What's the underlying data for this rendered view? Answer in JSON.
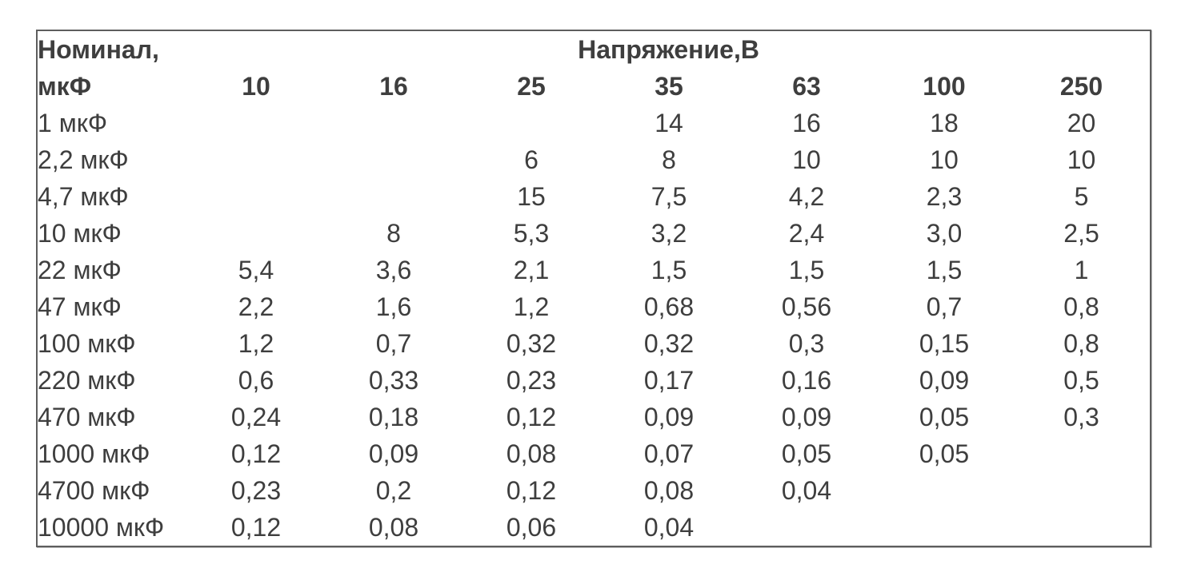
{
  "chart_data": {
    "type": "table",
    "corner_header": {
      "line1": "Номинал,",
      "line2": "мкФ"
    },
    "voltage_header": "Напряжение,В",
    "voltage_columns": [
      "10",
      "16",
      "25",
      "35",
      "63",
      "100",
      "250"
    ],
    "rows": [
      {
        "label": "1 мкФ",
        "values": [
          "",
          "",
          "",
          "14",
          "16",
          "18",
          "20"
        ]
      },
      {
        "label": "2,2 мкФ",
        "values": [
          "",
          "",
          "6",
          "8",
          "10",
          "10",
          "10"
        ]
      },
      {
        "label": "4,7 мкФ",
        "values": [
          "",
          "",
          "15",
          "7,5",
          "4,2",
          "2,3",
          "5"
        ]
      },
      {
        "label": "10 мкФ",
        "values": [
          "",
          "8",
          "5,3",
          "3,2",
          "2,4",
          "3,0",
          "2,5"
        ]
      },
      {
        "label": "22 мкФ",
        "values": [
          "5,4",
          "3,6",
          "2,1",
          "1,5",
          "1,5",
          "1,5",
          "1"
        ]
      },
      {
        "label": "47 мкФ",
        "values": [
          "2,2",
          "1,6",
          "1,2",
          "0,68",
          "0,56",
          "0,7",
          "0,8"
        ]
      },
      {
        "label": "100 мкФ",
        "values": [
          "1,2",
          "0,7",
          "0,32",
          "0,32",
          "0,3",
          "0,15",
          "0,8"
        ]
      },
      {
        "label": "220 мкФ",
        "values": [
          "0,6",
          "0,33",
          "0,23",
          "0,17",
          "0,16",
          "0,09",
          "0,5"
        ]
      },
      {
        "label": "470 мкФ",
        "values": [
          "0,24",
          "0,18",
          "0,12",
          "0,09",
          "0,09",
          "0,05",
          "0,3"
        ]
      },
      {
        "label": "1000 мкФ",
        "values": [
          "0,12",
          "0,09",
          "0,08",
          "0,07",
          "0,05",
          "0,05",
          ""
        ]
      },
      {
        "label": "4700 мкФ",
        "values": [
          "0,23",
          "0,2",
          "0,12",
          "0,08",
          "0,04",
          "",
          ""
        ]
      },
      {
        "label": "10000 мкФ",
        "values": [
          "0,12",
          "0,08",
          "0,06",
          "0,04",
          "",
          "",
          ""
        ]
      }
    ],
    "colors": {
      "text": "#3e3e3e",
      "border": "#5e5e5e",
      "background": "#ffffff"
    }
  }
}
